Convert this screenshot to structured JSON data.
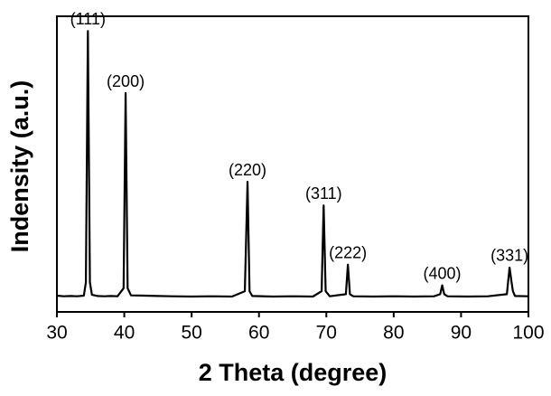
{
  "chart_data": {
    "type": "line",
    "xlabel": "2 Theta (degree)",
    "ylabel": "Indensity (a.u.)",
    "color": "#000000",
    "x": [
      30,
      31,
      32,
      33,
      34,
      34.3,
      34.6,
      34.9,
      35.2,
      36,
      37,
      38,
      39,
      39.9,
      40.2,
      40.5,
      41,
      43,
      45,
      47,
      50,
      53,
      56,
      57.9,
      58.3,
      58.6,
      59,
      62,
      65,
      68,
      69.3,
      69.6,
      69.9,
      70.5,
      72.9,
      73.2,
      73.5,
      74,
      77,
      80,
      83,
      86,
      86.9,
      87.2,
      87.5,
      88,
      91,
      94,
      96.8,
      97.2,
      97.5,
      97.7,
      98,
      100
    ],
    "values": [
      5.5,
      5.3,
      5.4,
      5.3,
      5.5,
      10,
      95,
      10,
      5.8,
      5.4,
      5.3,
      5.4,
      5.3,
      8,
      74,
      8,
      5.6,
      5.5,
      5.4,
      5.3,
      5.2,
      5.3,
      5.2,
      7,
      44,
      7,
      5.4,
      5.2,
      5.3,
      5.2,
      7,
      36,
      7,
      5.3,
      6,
      16,
      6,
      5.3,
      5.2,
      5.3,
      5.2,
      5.3,
      6,
      9,
      6,
      5.3,
      5.2,
      5.3,
      6,
      15,
      10,
      7,
      5.4,
      5.3
    ],
    "annotations": [
      {
        "text": "(111)",
        "x": 34.6,
        "y": 95
      },
      {
        "text": "(200)",
        "x": 40.2,
        "y": 74
      },
      {
        "text": "(220)",
        "x": 58.3,
        "y": 44
      },
      {
        "text": "(311)",
        "x": 69.6,
        "y": 36
      },
      {
        "text": "(222)",
        "x": 73.2,
        "y": 16
      },
      {
        "text": "(400)",
        "x": 87.2,
        "y": 9
      },
      {
        "text": "(331)",
        "x": 97.2,
        "y": 15
      }
    ],
    "xlim": [
      30,
      100
    ],
    "xticks": [
      30,
      40,
      50,
      60,
      70,
      80,
      90,
      100
    ],
    "ylim": [
      0,
      100
    ]
  }
}
